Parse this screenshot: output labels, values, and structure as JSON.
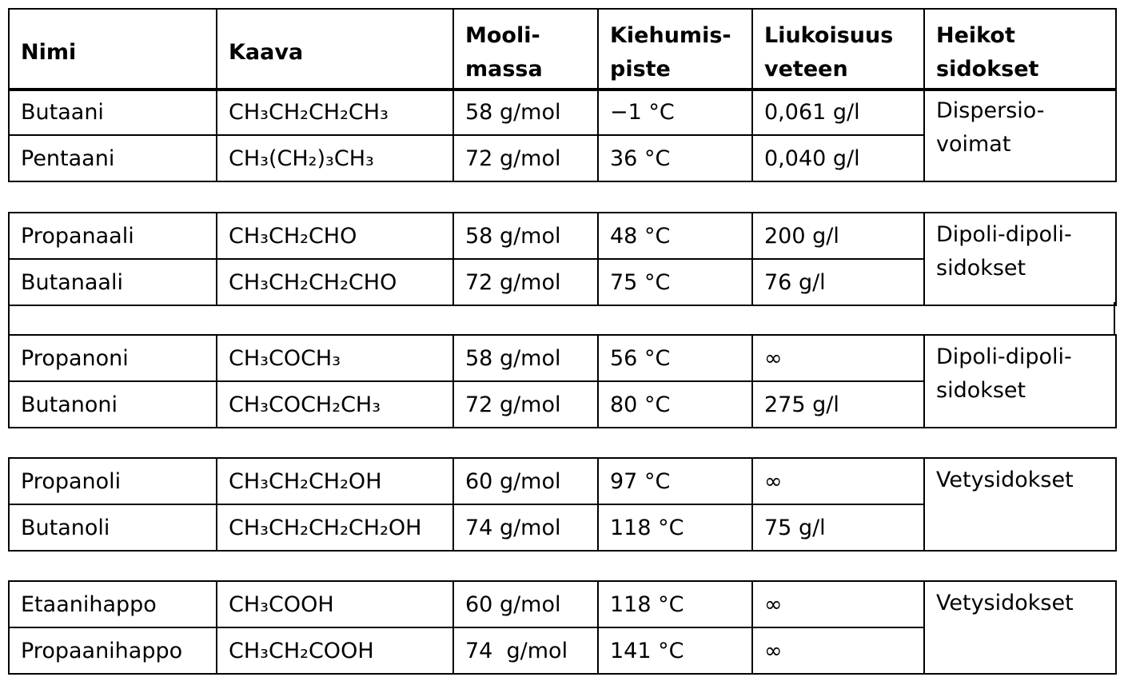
{
  "table": {
    "header": [
      "Nimi",
      "Kaava",
      "Mooli-\nmassa",
      "Kiehumis-\npiste",
      "Liukoisuus\nveteen",
      "Heikot\nsidokset"
    ],
    "groups": [
      {
        "rows": [
          [
            "Butaani",
            "CH₃CH₂CH₂CH₃",
            "58 g/mol",
            "−1 °C",
            "0,061 g/l"
          ],
          [
            "Pentaani",
            "CH₃(CH₂)₃CH₃",
            "72 g/mol",
            "36 °C",
            "0,040 g/l"
          ]
        ],
        "bonds": "Dispersio-\nvoimat"
      },
      {
        "rows": [
          [
            "Propanaali",
            "CH₃CH₂CHO",
            "58 g/mol",
            "48 °C",
            "200 g/l"
          ],
          [
            "Butanaali",
            "CH₃CH₂CH₂CHO",
            "72 g/mol",
            "75 °C",
            "76 g/l"
          ]
        ],
        "bonds": "Dipoli-dipoli-\nsidokset"
      },
      {
        "rows": [
          [
            "Propanoni",
            "CH₃COCH₃",
            "58 g/mol",
            "56 °C",
            "∞"
          ],
          [
            "Butanoni",
            "CH₃COCH₂CH₃",
            "72 g/mol",
            "80 °C",
            "275 g/l"
          ]
        ],
        "bonds": "Dipoli-dipoli-\nsidokset"
      },
      {
        "rows": [
          [
            "Propanoli",
            "CH₃CH₂CH₂OH",
            "60 g/mol",
            "97 °C",
            "∞"
          ],
          [
            "Butanoli",
            "CH₃CH₂CH₂CH₂OH",
            "74 g/mol",
            "118 °C",
            "75 g/l"
          ]
        ],
        "bonds": "Vetysidokset"
      },
      {
        "rows": [
          [
            "Etaanihappo",
            "CH₃COOH",
            "60 g/mol",
            "118 °C",
            "∞"
          ],
          [
            "Propaanihappo",
            "CH₃CH₂COOH",
            "74  g/mol",
            "141 °C",
            "∞"
          ]
        ],
        "bonds": "Vetysidokset"
      }
    ]
  }
}
